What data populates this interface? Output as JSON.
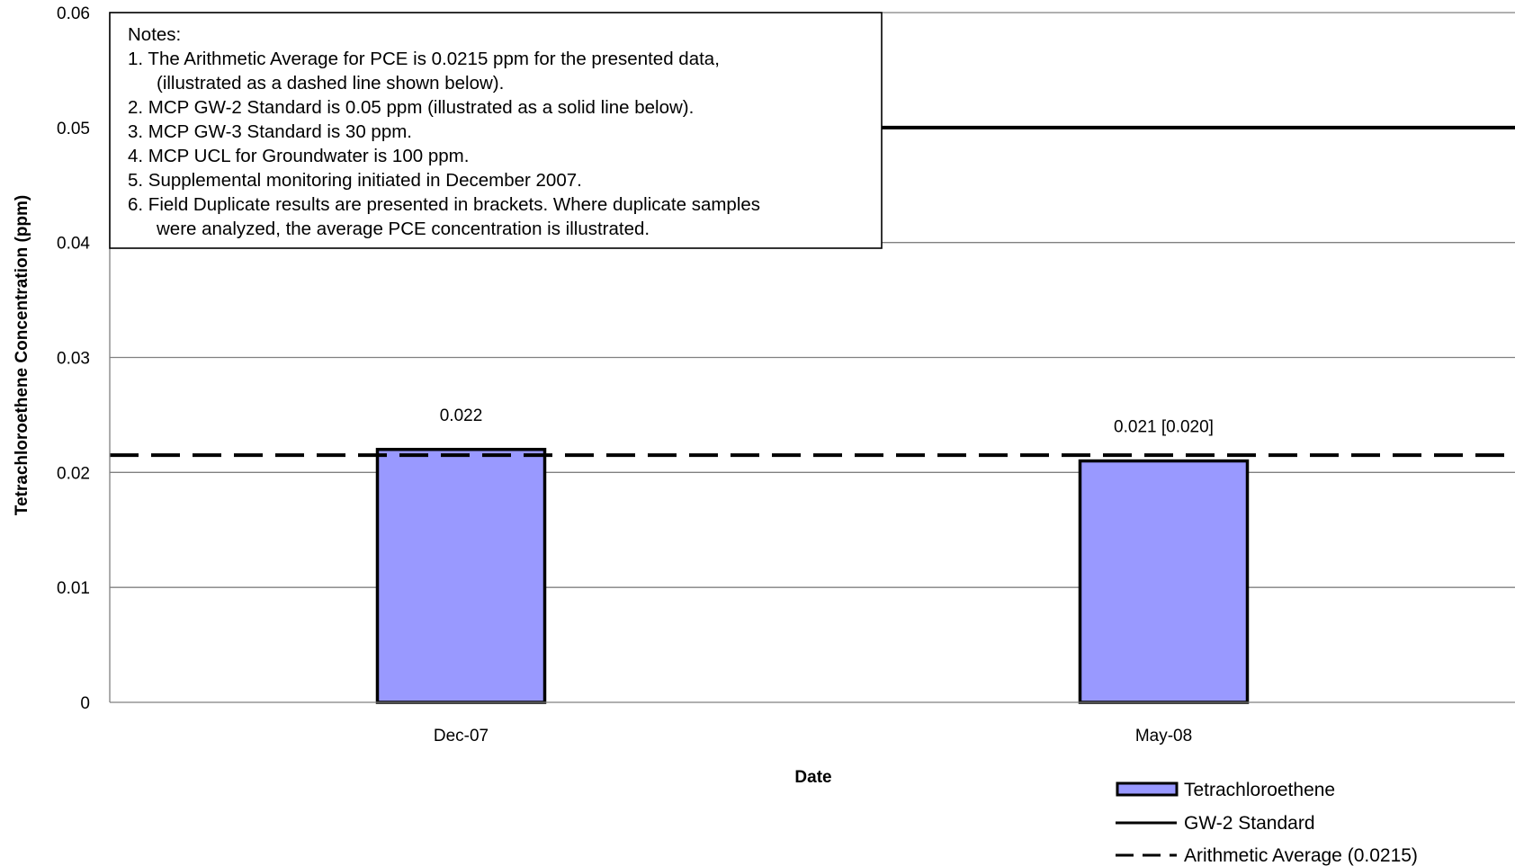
{
  "chart_data": {
    "type": "bar",
    "categories": [
      "Dec-07",
      "May-08"
    ],
    "series": [
      {
        "name": "Tetrachloroethene",
        "values": [
          0.022,
          0.021
        ],
        "color": "#9999ff"
      }
    ],
    "data_labels": [
      "0.022",
      "0.021 [0.020]"
    ],
    "reference_lines": [
      {
        "name": "GW-2 Standard",
        "value": 0.05,
        "style": "solid",
        "color": "#000000"
      },
      {
        "name": "Arithmetic Average (0.0215)",
        "value": 0.0215,
        "style": "dashed",
        "color": "#000000"
      }
    ],
    "xlabel": "Date",
    "ylabel": "Tetrachloroethene Concentration (ppm)",
    "ylim": [
      0,
      0.06
    ],
    "yticks": [
      0,
      0.01,
      0.02,
      0.03,
      0.04,
      0.05,
      0.06
    ],
    "ytick_labels": [
      "0",
      "0.01",
      "0.02",
      "0.03",
      "0.04",
      "0.05",
      "0.06"
    ],
    "grid": true,
    "legend_position": "bottom-right",
    "legend": [
      {
        "label": "Tetrachloroethene",
        "kind": "bar"
      },
      {
        "label": "GW-2 Standard",
        "kind": "solid"
      },
      {
        "label": "Arithmetic Average (0.0215)",
        "kind": "dashed"
      }
    ],
    "notes": {
      "heading": "Notes:",
      "lines": [
        "1.  The Arithmetic Average for PCE is 0.0215 ppm for the presented data,",
        "      (illustrated as a dashed line shown below).",
        "2.  MCP GW-2 Standard is 0.05 ppm (illustrated as a solid line below).",
        "3.  MCP GW-3 Standard is 30 ppm.",
        "4.  MCP UCL for Groundwater is 100 ppm.",
        "5.  Supplemental monitoring initiated in December 2007.",
        "6.  Field Duplicate results are presented in brackets. Where duplicate samples",
        "      were analyzed, the average PCE concentration is illustrated."
      ]
    }
  }
}
